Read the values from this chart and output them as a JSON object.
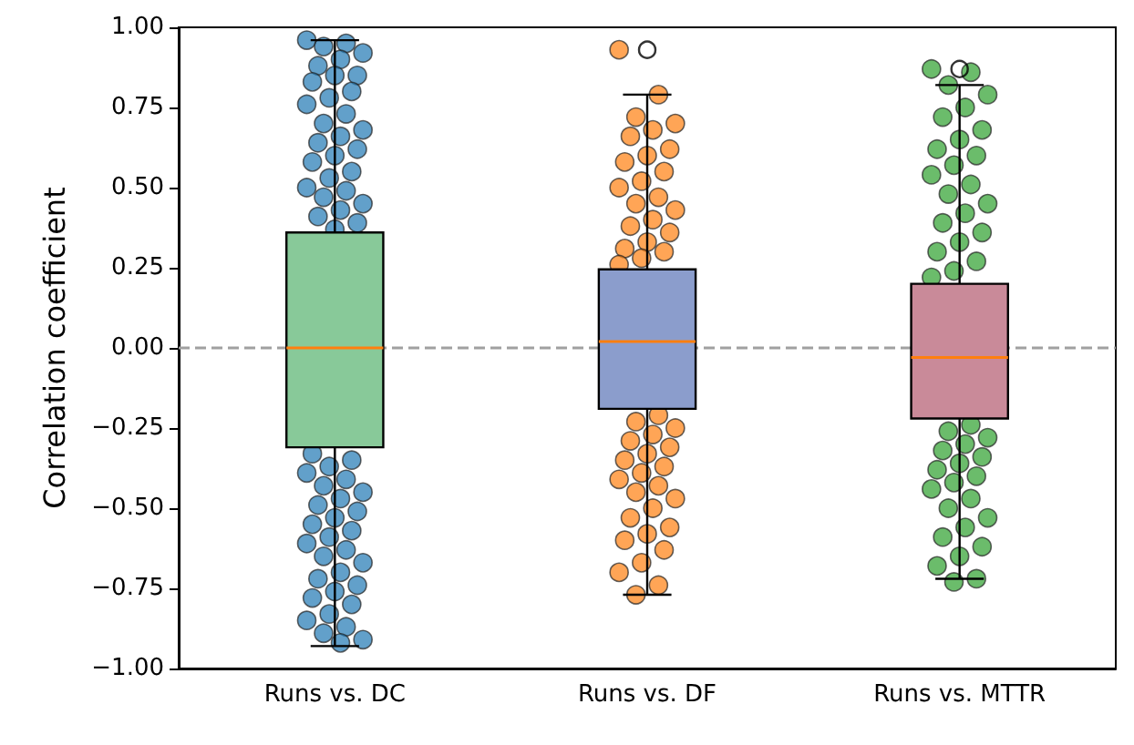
{
  "chart_data": {
    "type": "box",
    "ylabel": "Correlation coefficient",
    "categories": [
      "Runs vs. DC",
      "Runs vs. DF",
      "Runs vs. MTTR"
    ],
    "ylim": [
      -1,
      1
    ],
    "yticks": [
      {
        "value": -1,
        "label": "−1.00"
      },
      {
        "value": -0.75,
        "label": "−0.75"
      },
      {
        "value": -0.5,
        "label": "−0.50"
      },
      {
        "value": -0.25,
        "label": "−0.25"
      },
      {
        "value": 0,
        "label": "0.00"
      },
      {
        "value": 0.25,
        "label": "0.25"
      },
      {
        "value": 0.5,
        "label": "0.50"
      },
      {
        "value": 0.75,
        "label": "0.75"
      },
      {
        "value": 1,
        "label": "1.00"
      }
    ],
    "grid": false,
    "ref_lines": [
      {
        "axis": "y",
        "value": 0,
        "color": "#a0a0a0",
        "line_style": "dashed"
      }
    ],
    "series": [
      {
        "type": "scatter",
        "marker": "circle",
        "color": "#1f77b4",
        "x": [
          "Runs vs. DC",
          "Runs vs. DC",
          "Runs vs. DC",
          "Runs vs. DC",
          "Runs vs. DC",
          "Runs vs. DC",
          "Runs vs. DC",
          "Runs vs. DC",
          "Runs vs. DC",
          "Runs vs. DC",
          "Runs vs. DC",
          "Runs vs. DC",
          "Runs vs. DC",
          "Runs vs. DC",
          "Runs vs. DC",
          "Runs vs. DC",
          "Runs vs. DC",
          "Runs vs. DC",
          "Runs vs. DC",
          "Runs vs. DC",
          "Runs vs. DC",
          "Runs vs. DC",
          "Runs vs. DC",
          "Runs vs. DC",
          "Runs vs. DC",
          "Runs vs. DC",
          "Runs vs. DC",
          "Runs vs. DC",
          "Runs vs. DC",
          "Runs vs. DC",
          "Runs vs. DC",
          "Runs vs. DC",
          "Runs vs. DC",
          "Runs vs. DC",
          "Runs vs. DC",
          "Runs vs. DC",
          "Runs vs. DC",
          "Runs vs. DC",
          "Runs vs. DC",
          "Runs vs. DC",
          "Runs vs. DC",
          "Runs vs. DC",
          "Runs vs. DC",
          "Runs vs. DC",
          "Runs vs. DC",
          "Runs vs. DC",
          "Runs vs. DC",
          "Runs vs. DC",
          "Runs vs. DC",
          "Runs vs. DC",
          "Runs vs. DC",
          "Runs vs. DC",
          "Runs vs. DC",
          "Runs vs. DC",
          "Runs vs. DC",
          "Runs vs. DC",
          "Runs vs. DC",
          "Runs vs. DC",
          "Runs vs. DC",
          "Runs vs. DC"
        ],
        "values": [
          0.96,
          0.95,
          0.94,
          0.92,
          0.9,
          0.88,
          0.85,
          0.85,
          0.83,
          0.8,
          0.78,
          0.76,
          0.73,
          0.7,
          0.68,
          0.66,
          0.64,
          0.62,
          0.6,
          0.58,
          0.55,
          0.53,
          0.5,
          0.49,
          0.47,
          0.45,
          0.43,
          0.41,
          0.39,
          0.37,
          -0.33,
          -0.35,
          -0.37,
          -0.39,
          -0.41,
          -0.43,
          -0.45,
          -0.47,
          -0.49,
          -0.51,
          -0.53,
          -0.55,
          -0.57,
          -0.59,
          -0.61,
          -0.63,
          -0.65,
          -0.67,
          -0.7,
          -0.72,
          -0.74,
          -0.76,
          -0.78,
          -0.8,
          -0.83,
          -0.85,
          -0.87,
          -0.89,
          -0.91,
          -0.92
        ]
      },
      {
        "type": "scatter",
        "marker": "circle",
        "color": "#ff7f0e",
        "x": [
          "Runs vs. DF",
          "Runs vs. DF",
          "Runs vs. DF",
          "Runs vs. DF",
          "Runs vs. DF",
          "Runs vs. DF",
          "Runs vs. DF",
          "Runs vs. DF",
          "Runs vs. DF",
          "Runs vs. DF",
          "Runs vs. DF",
          "Runs vs. DF",
          "Runs vs. DF",
          "Runs vs. DF",
          "Runs vs. DF",
          "Runs vs. DF",
          "Runs vs. DF",
          "Runs vs. DF",
          "Runs vs. DF",
          "Runs vs. DF",
          "Runs vs. DF",
          "Runs vs. DF",
          "Runs vs. DF",
          "Runs vs. DF",
          "Runs vs. DF",
          "Runs vs. DF",
          "Runs vs. DF",
          "Runs vs. DF",
          "Runs vs. DF",
          "Runs vs. DF",
          "Runs vs. DF",
          "Runs vs. DF",
          "Runs vs. DF",
          "Runs vs. DF",
          "Runs vs. DF",
          "Runs vs. DF",
          "Runs vs. DF",
          "Runs vs. DF",
          "Runs vs. DF",
          "Runs vs. DF",
          "Runs vs. DF",
          "Runs vs. DF",
          "Runs vs. DF",
          "Runs vs. DF",
          "Runs vs. DF",
          "Runs vs. DF",
          "Runs vs. DF"
        ],
        "values": [
          0.93,
          0.79,
          0.72,
          0.7,
          0.68,
          0.66,
          0.62,
          0.6,
          0.58,
          0.55,
          0.52,
          0.5,
          0.47,
          0.45,
          0.43,
          0.4,
          0.38,
          0.36,
          0.33,
          0.31,
          0.3,
          0.28,
          0.26,
          -0.21,
          -0.23,
          -0.25,
          -0.27,
          -0.29,
          -0.31,
          -0.33,
          -0.35,
          -0.37,
          -0.39,
          -0.41,
          -0.43,
          -0.45,
          -0.47,
          -0.5,
          -0.53,
          -0.56,
          -0.58,
          -0.6,
          -0.63,
          -0.67,
          -0.7,
          -0.74,
          -0.77
        ]
      },
      {
        "type": "scatter",
        "marker": "circle",
        "color": "#2ca02c",
        "x": [
          "Runs vs. MTTR",
          "Runs vs. MTTR",
          "Runs vs. MTTR",
          "Runs vs. MTTR",
          "Runs vs. MTTR",
          "Runs vs. MTTR",
          "Runs vs. MTTR",
          "Runs vs. MTTR",
          "Runs vs. MTTR",
          "Runs vs. MTTR",
          "Runs vs. MTTR",
          "Runs vs. MTTR",
          "Runs vs. MTTR",
          "Runs vs. MTTR",
          "Runs vs. MTTR",
          "Runs vs. MTTR",
          "Runs vs. MTTR",
          "Runs vs. MTTR",
          "Runs vs. MTTR",
          "Runs vs. MTTR",
          "Runs vs. MTTR",
          "Runs vs. MTTR",
          "Runs vs. MTTR",
          "Runs vs. MTTR",
          "Runs vs. MTTR",
          "Runs vs. MTTR",
          "Runs vs. MTTR",
          "Runs vs. MTTR",
          "Runs vs. MTTR",
          "Runs vs. MTTR",
          "Runs vs. MTTR",
          "Runs vs. MTTR",
          "Runs vs. MTTR",
          "Runs vs. MTTR",
          "Runs vs. MTTR",
          "Runs vs. MTTR",
          "Runs vs. MTTR",
          "Runs vs. MTTR",
          "Runs vs. MTTR",
          "Runs vs. MTTR",
          "Runs vs. MTTR",
          "Runs vs. MTTR",
          "Runs vs. MTTR",
          "Runs vs. MTTR"
        ],
        "values": [
          0.87,
          0.86,
          0.82,
          0.79,
          0.75,
          0.72,
          0.68,
          0.65,
          0.62,
          0.6,
          0.57,
          0.54,
          0.51,
          0.48,
          0.45,
          0.42,
          0.39,
          0.36,
          0.33,
          0.3,
          0.27,
          0.24,
          0.22,
          -0.24,
          -0.26,
          -0.28,
          -0.3,
          -0.32,
          -0.34,
          -0.36,
          -0.38,
          -0.4,
          -0.42,
          -0.44,
          -0.47,
          -0.5,
          -0.53,
          -0.56,
          -0.59,
          -0.62,
          -0.65,
          -0.68,
          -0.72,
          -0.73
        ]
      },
      {
        "colors": [
          "#88c999",
          "#8b9dcc",
          "#c98a99"
        ],
        "boxes": [
          {
            "low": -0.93,
            "q1": -0.31,
            "median": 0.0,
            "q3": 0.36,
            "high": 0.96
          },
          {
            "low": -0.77,
            "q1": -0.19,
            "median": 0.02,
            "q3": 0.245,
            "high": 0.79,
            "outliers": [
              0.93
            ]
          },
          {
            "low": -0.72,
            "q1": -0.22,
            "median": -0.03,
            "q3": 0.2,
            "high": 0.82,
            "outliers": [
              0.87
            ]
          }
        ]
      }
    ]
  }
}
